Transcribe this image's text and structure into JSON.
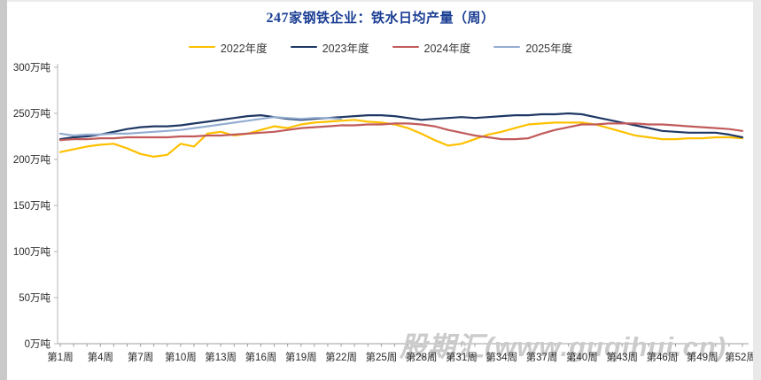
{
  "page": {
    "title_num": "247",
    "title_rest": "家钢铁企业：铁水日均产量（周）",
    "title_color": "#1b3e94"
  },
  "watermark": {
    "text": "股期汇(www.guqihui.cn)",
    "color": "#cbcbcb"
  },
  "y_axis": {
    "labels": [
      "300万吨",
      "250万吨",
      "200万吨",
      "150万吨",
      "100万吨",
      "50万吨",
      "0万吨"
    ]
  },
  "x_axis": {
    "labels": [
      "第1周",
      "第4周",
      "第7周",
      "第10周",
      "第13周",
      "第16周",
      "第19周",
      "第22周",
      "第25周",
      "第28周",
      "第31周",
      "第34周",
      "第37周",
      "第40周",
      "第43周",
      "第46周",
      "第49周",
      "第52周"
    ]
  },
  "chart_data": {
    "type": "line",
    "title": "247家钢铁企业：铁水日均产量（周）",
    "unit": "万吨",
    "xlabel": "周",
    "ylabel": "万吨",
    "ylim": [
      0,
      300
    ],
    "ytick_step": 50,
    "x_range_weeks": [
      1,
      52
    ],
    "x_tick_label_interval": 3,
    "grid": false,
    "legend_position": "top",
    "series": [
      {
        "name": "2022年度",
        "color": "#FFC000",
        "start_week": 1,
        "values": [
          208,
          211,
          214,
          216,
          217,
          212,
          206,
          203,
          205,
          217,
          214,
          228,
          230,
          226,
          228,
          232,
          236,
          234,
          238,
          240,
          241,
          242,
          243,
          241,
          240,
          238,
          234,
          228,
          221,
          215,
          217,
          222,
          227,
          230,
          234,
          238,
          239,
          240,
          240,
          240,
          238,
          234,
          230,
          226,
          224,
          222,
          222,
          223,
          223,
          224,
          224,
          223
        ]
      },
      {
        "name": "2023年度",
        "color": "#1F3864",
        "start_week": 1,
        "values": [
          222,
          224,
          225,
          227,
          230,
          233,
          235,
          236,
          236,
          237,
          239,
          241,
          243,
          245,
          247,
          248,
          246,
          244,
          243,
          244,
          245,
          246,
          247,
          248,
          248,
          247,
          245,
          243,
          244,
          245,
          246,
          245,
          246,
          247,
          248,
          248,
          249,
          249,
          250,
          249,
          246,
          243,
          240,
          237,
          234,
          231,
          230,
          229,
          229,
          229,
          227,
          224
        ]
      },
      {
        "name": "2024年度",
        "color": "#C15B5B",
        "start_week": 1,
        "values": [
          221,
          222,
          222,
          223,
          223,
          224,
          224,
          224,
          224,
          225,
          225,
          226,
          226,
          227,
          228,
          229,
          230,
          232,
          234,
          235,
          236,
          237,
          237,
          238,
          238,
          239,
          239,
          238,
          236,
          232,
          229,
          226,
          224,
          222,
          222,
          223,
          228,
          232,
          235,
          238,
          238,
          239,
          239,
          239,
          238,
          238,
          237,
          236,
          235,
          234,
          233,
          231
        ]
      },
      {
        "name": "2025年度",
        "color": "#94ADD1",
        "start_week": 1,
        "values": [
          228,
          226,
          227,
          227,
          228,
          228,
          229,
          230,
          231,
          232,
          234,
          236,
          238,
          240,
          242,
          244,
          246,
          245,
          244,
          245,
          245,
          244
        ]
      }
    ]
  }
}
